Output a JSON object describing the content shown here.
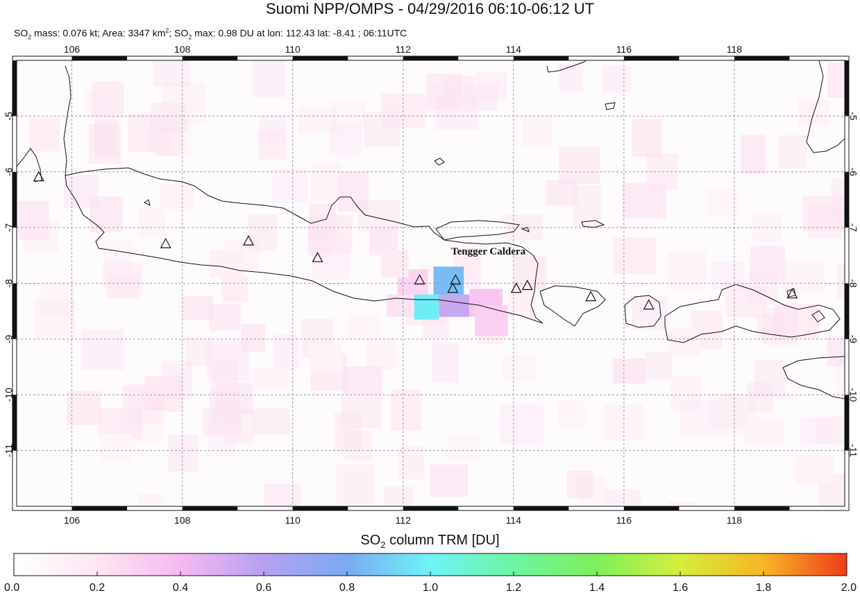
{
  "header": {
    "title": "Suomi NPP/OMPS - 04/29/2016 06:10-06:12 UT",
    "subtitle": {
      "mass_prefix": "SO",
      "mass_text": " mass: 0.076 kt; Area: 3347 km",
      "area_sup": "2",
      "max_prefix": "; SO",
      "max_text": " max: 0.98 DU at lon: 112.43 lat: -8.41 ; 06:11UTC",
      "sub2": "2"
    }
  },
  "map": {
    "lon_range": [
      105,
      120
    ],
    "lat_range": [
      -12,
      -4
    ],
    "lon_ticks": [
      106,
      108,
      110,
      112,
      114,
      116,
      118
    ],
    "lat_ticks": [
      -5,
      -6,
      -7,
      -8,
      -9,
      -10,
      -11
    ],
    "lon_tick_labels": [
      "106",
      "108",
      "110",
      "112",
      "114",
      "116",
      "118"
    ],
    "lat_tick_labels": [
      "-5",
      "-6",
      "-7",
      "-8",
      "-9",
      "-10",
      "-11"
    ],
    "grid": true,
    "annotation": "Tengger Caldera",
    "volcanoes": [
      [
        105.4,
        -6.1
      ],
      [
        107.7,
        -7.3
      ],
      [
        109.2,
        -7.25
      ],
      [
        110.45,
        -7.55
      ],
      [
        112.3,
        -7.95
      ],
      [
        112.95,
        -7.95
      ],
      [
        112.9,
        -8.1
      ],
      [
        114.05,
        -8.1
      ],
      [
        114.25,
        -8.05
      ],
      [
        115.4,
        -8.25
      ],
      [
        116.45,
        -8.4
      ],
      [
        119.05,
        -8.2
      ]
    ],
    "so2_pixels": [
      {
        "lon0": 112.55,
        "lon1": 113.1,
        "lat0": -7.7,
        "lat1": -8.3,
        "du": 0.85
      },
      {
        "lon0": 112.2,
        "lon1": 112.65,
        "lat0": -8.2,
        "lat1": -8.65,
        "du": 0.98
      },
      {
        "lon0": 112.65,
        "lon1": 113.2,
        "lat0": -8.2,
        "lat1": -8.6,
        "du": 0.55
      },
      {
        "lon0": 113.2,
        "lon1": 113.8,
        "lat0": -8.1,
        "lat1": -8.6,
        "du": 0.35
      },
      {
        "lon0": 113.3,
        "lon1": 113.9,
        "lat0": -8.4,
        "lat1": -8.95,
        "du": 0.3
      },
      {
        "lon0": 111.9,
        "lon1": 112.45,
        "lat0": -7.75,
        "lat1": -8.2,
        "du": 0.28
      },
      {
        "lon0": 111.7,
        "lon1": 112.2,
        "lat0": -8.2,
        "lat1": -8.6,
        "du": 0.22
      },
      {
        "lon0": 111.4,
        "lon1": 111.9,
        "lat0": -7.0,
        "lat1": -7.5,
        "du": 0.18
      },
      {
        "lon0": 111.6,
        "lon1": 112.1,
        "lat0": -7.4,
        "lat1": -7.9,
        "du": 0.15
      },
      {
        "lon0": 113.9,
        "lon1": 114.4,
        "lat0": -8.1,
        "lat1": -8.6,
        "du": 0.12
      },
      {
        "lon0": 115.8,
        "lon1": 116.4,
        "lat0": -9.35,
        "lat1": -9.8,
        "du": 0.18
      },
      {
        "lon0": 107.6,
        "lon1": 108.2,
        "lat0": -6.2,
        "lat1": -6.7,
        "du": 0.1
      },
      {
        "lon0": 108.5,
        "lon1": 109.1,
        "lat0": -7.4,
        "lat1": -7.9,
        "du": 0.12
      },
      {
        "lon0": 110.3,
        "lon1": 110.9,
        "lat0": -9.1,
        "lat1": -9.6,
        "du": 0.1
      },
      {
        "lon0": 109.3,
        "lon1": 109.9,
        "lat0": -9.5,
        "lat1": -9.9,
        "du": 0.1
      },
      {
        "lon0": 112.8,
        "lon1": 113.4,
        "lat0": -10.7,
        "lat1": -11.2,
        "du": 0.08
      },
      {
        "lon0": 117.5,
        "lon1": 118.1,
        "lat0": -6.3,
        "lat1": -6.8,
        "du": 0.08
      },
      {
        "lon0": 116.8,
        "lon1": 117.4,
        "lat0": -8.8,
        "lat1": -9.3,
        "du": 0.1
      },
      {
        "lon0": 118.2,
        "lon1": 118.9,
        "lat0": -10.4,
        "lat1": -10.9,
        "du": 0.1
      },
      {
        "lon0": 114.8,
        "lon1": 115.3,
        "lat0": -10.1,
        "lat1": -10.6,
        "du": 0.08
      },
      {
        "lon0": 106.5,
        "lon1": 107.1,
        "lat0": -10.7,
        "lat1": -11.2,
        "du": 0.07
      },
      {
        "lon0": 119.1,
        "lon1": 119.8,
        "lat0": -11.1,
        "lat1": -11.6,
        "du": 0.1
      },
      {
        "lon0": 111.0,
        "lon1": 111.6,
        "lat0": -8.55,
        "lat1": -9.0,
        "du": 0.08
      }
    ]
  },
  "colorbar": {
    "title_prefix": "SO",
    "title_sub": "2",
    "title_suffix": " column TRM [DU]",
    "min": 0.0,
    "max": 2.0,
    "tick_labels": [
      "0.0",
      "0.2",
      "0.4",
      "0.6",
      "0.8",
      "1.0",
      "1.2",
      "1.4",
      "1.6",
      "1.8",
      "2.0"
    ],
    "stops": [
      "#ffffff",
      "#fde6f2",
      "#f6b9f0",
      "#b6a1f0",
      "#7aaaf2",
      "#6ef4f6",
      "#6cf5a2",
      "#7ef05a",
      "#d6ee3e",
      "#f7b624",
      "#f23a1c"
    ]
  }
}
